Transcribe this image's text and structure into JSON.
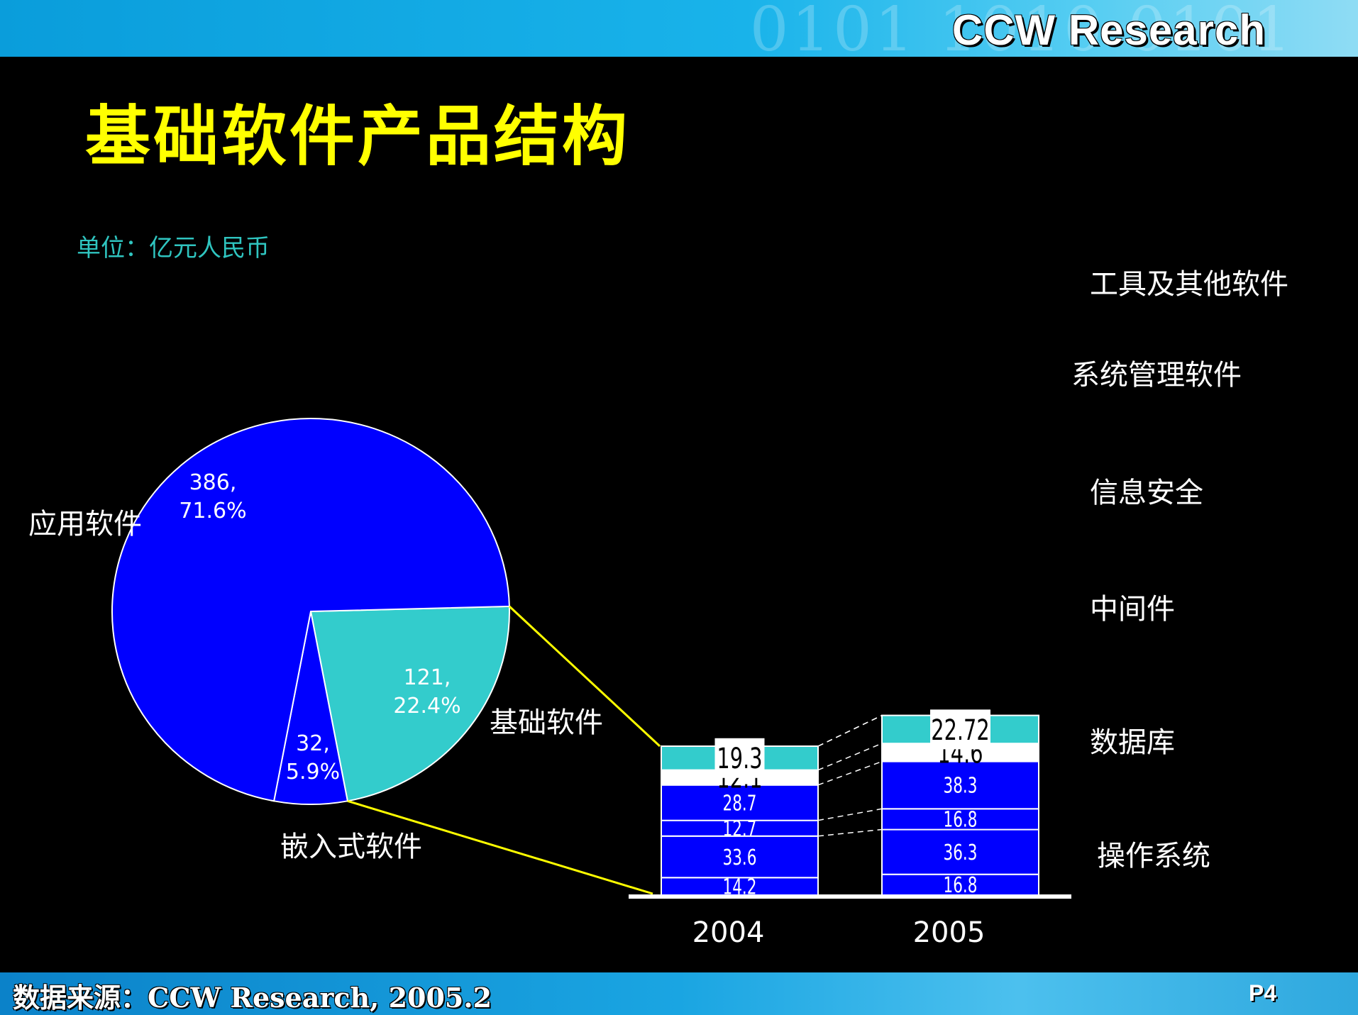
{
  "header": {
    "brand": "CCW Research",
    "title": "基础软件产品结构"
  },
  "unit": "单位：亿元人民币",
  "footer": {
    "source": "数据来源：CCW Research, 2005.2",
    "page": "P4"
  },
  "colors": {
    "blue": "#0000ff",
    "teal": "#33cccc",
    "white": "#ffffff",
    "yellow": "#ffff00"
  },
  "chart_data": [
    {
      "type": "pie",
      "title": "",
      "slices": [
        {
          "name": "应用软件",
          "value": 386,
          "percent": "71.6%",
          "label": "386,\n71.6%",
          "color": "#0000ff"
        },
        {
          "name": "基础软件",
          "value": 121,
          "percent": "22.4%",
          "label": "121,\n22.4%",
          "color": "#33cccc"
        },
        {
          "name": "嵌入式软件",
          "value": 32,
          "percent": "5.9%",
          "label": "32,\n5.9%",
          "color": "#0000ff"
        }
      ]
    },
    {
      "type": "bar",
      "stacked": true,
      "categories": [
        "2004",
        "2005"
      ],
      "series": [
        {
          "name": "操作系统",
          "values": [
            14.2,
            16.8
          ],
          "color": "#0000ff"
        },
        {
          "name": "数据库",
          "values": [
            33.6,
            36.3
          ],
          "color": "#0000ff"
        },
        {
          "name": "中间件",
          "values": [
            12.7,
            16.8
          ],
          "color": "#0000ff"
        },
        {
          "name": "信息安全",
          "values": [
            28.7,
            38.3
          ],
          "color": "#0000ff"
        },
        {
          "name": "系统管理软件",
          "values": [
            12.1,
            14.6
          ],
          "color": "#ffffff"
        },
        {
          "name": "工具及其他软件",
          "values": [
            19.3,
            22.72
          ],
          "color": "#33cccc"
        }
      ],
      "value_labels": [
        [
          "14.2",
          "33.6",
          "12.7",
          "28.7",
          "12.1",
          "19.3"
        ],
        [
          "16.8",
          "36.3",
          "16.8",
          "38.3",
          "14.6",
          "22.72"
        ]
      ]
    }
  ]
}
